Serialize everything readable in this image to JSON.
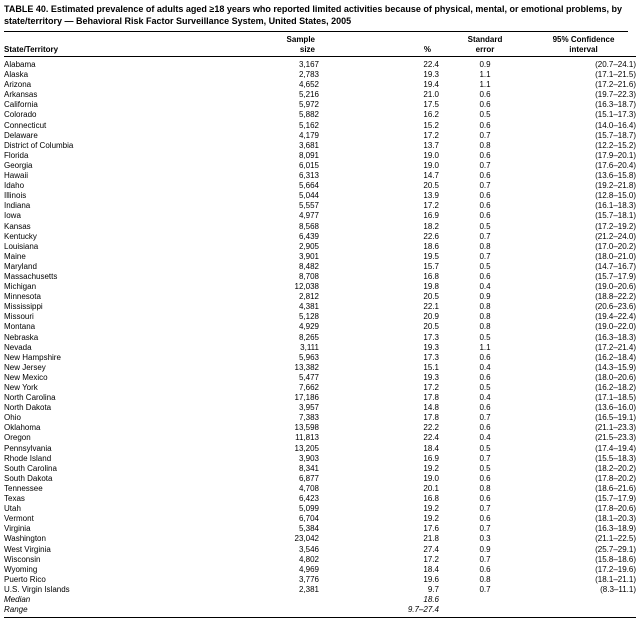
{
  "title": "TABLE 40. Estimated prevalence of adults aged ≥18 years who reported limited activities because of physical, mental, or emotional problems, by state/territory — Behavioral Risk Factor Surveillance System, United States, 2005",
  "table": {
    "headers": {
      "state": "State/Territory",
      "sample": "Sample\nsize",
      "pct": "%",
      "se": "Standard\nerror",
      "ci": "95% Confidence\ninterval"
    },
    "rows": [
      {
        "state": "Alabama",
        "sample": "3,167",
        "pct": "22.4",
        "se": "0.9",
        "ci": "(20.7–24.1)"
      },
      {
        "state": "Alaska",
        "sample": "2,783",
        "pct": "19.3",
        "se": "1.1",
        "ci": "(17.1–21.5)"
      },
      {
        "state": "Arizona",
        "sample": "4,652",
        "pct": "19.4",
        "se": "1.1",
        "ci": "(17.2–21.6)"
      },
      {
        "state": "Arkansas",
        "sample": "5,216",
        "pct": "21.0",
        "se": "0.6",
        "ci": "(19.7–22.3)"
      },
      {
        "state": "California",
        "sample": "5,972",
        "pct": "17.5",
        "se": "0.6",
        "ci": "(16.3–18.7)"
      },
      {
        "state": "Colorado",
        "sample": "5,882",
        "pct": "16.2",
        "se": "0.5",
        "ci": "(15.1–17.3)"
      },
      {
        "state": "Connecticut",
        "sample": "5,162",
        "pct": "15.2",
        "se": "0.6",
        "ci": "(14.0–16.4)"
      },
      {
        "state": "Delaware",
        "sample": "4,179",
        "pct": "17.2",
        "se": "0.7",
        "ci": "(15.7–18.7)"
      },
      {
        "state": "District of Columbia",
        "sample": "3,681",
        "pct": "13.7",
        "se": "0.8",
        "ci": "(12.2–15.2)"
      },
      {
        "state": "Florida",
        "sample": "8,091",
        "pct": "19.0",
        "se": "0.6",
        "ci": "(17.9–20.1)"
      },
      {
        "state": "Georgia",
        "sample": "6,015",
        "pct": "19.0",
        "se": "0.7",
        "ci": "(17.6–20.4)"
      },
      {
        "state": "Hawaii",
        "sample": "6,313",
        "pct": "14.7",
        "se": "0.6",
        "ci": "(13.6–15.8)"
      },
      {
        "state": "Idaho",
        "sample": "5,664",
        "pct": "20.5",
        "se": "0.7",
        "ci": "(19.2–21.8)"
      },
      {
        "state": "Illinois",
        "sample": "5,044",
        "pct": "13.9",
        "se": "0.6",
        "ci": "(12.8–15.0)"
      },
      {
        "state": "Indiana",
        "sample": "5,557",
        "pct": "17.2",
        "se": "0.6",
        "ci": "(16.1–18.3)"
      },
      {
        "state": "Iowa",
        "sample": "4,977",
        "pct": "16.9",
        "se": "0.6",
        "ci": "(15.7–18.1)"
      },
      {
        "state": "Kansas",
        "sample": "8,568",
        "pct": "18.2",
        "se": "0.5",
        "ci": "(17.2–19.2)"
      },
      {
        "state": "Kentucky",
        "sample": "6,439",
        "pct": "22.6",
        "se": "0.7",
        "ci": "(21.2–24.0)"
      },
      {
        "state": "Louisiana",
        "sample": "2,905",
        "pct": "18.6",
        "se": "0.8",
        "ci": "(17.0–20.2)"
      },
      {
        "state": "Maine",
        "sample": "3,901",
        "pct": "19.5",
        "se": "0.7",
        "ci": "(18.0–21.0)"
      },
      {
        "state": "Maryland",
        "sample": "8,482",
        "pct": "15.7",
        "se": "0.5",
        "ci": "(14.7–16.7)"
      },
      {
        "state": "Massachusetts",
        "sample": "8,708",
        "pct": "16.8",
        "se": "0.6",
        "ci": "(15.7–17.9)"
      },
      {
        "state": "Michigan",
        "sample": "12,038",
        "pct": "19.8",
        "se": "0.4",
        "ci": "(19.0–20.6)"
      },
      {
        "state": "Minnesota",
        "sample": "2,812",
        "pct": "20.5",
        "se": "0.9",
        "ci": "(18.8–22.2)"
      },
      {
        "state": "Mississippi",
        "sample": "4,381",
        "pct": "22.1",
        "se": "0.8",
        "ci": "(20.6–23.6)"
      },
      {
        "state": "Missouri",
        "sample": "5,128",
        "pct": "20.9",
        "se": "0.8",
        "ci": "(19.4–22.4)"
      },
      {
        "state": "Montana",
        "sample": "4,929",
        "pct": "20.5",
        "se": "0.8",
        "ci": "(19.0–22.0)"
      },
      {
        "state": "Nebraska",
        "sample": "8,265",
        "pct": "17.3",
        "se": "0.5",
        "ci": "(16.3–18.3)"
      },
      {
        "state": "Nevada",
        "sample": "3,111",
        "pct": "19.3",
        "se": "1.1",
        "ci": "(17.2–21.4)"
      },
      {
        "state": "New Hampshire",
        "sample": "5,963",
        "pct": "17.3",
        "se": "0.6",
        "ci": "(16.2–18.4)"
      },
      {
        "state": "New Jersey",
        "sample": "13,382",
        "pct": "15.1",
        "se": "0.4",
        "ci": "(14.3–15.9)"
      },
      {
        "state": "New Mexico",
        "sample": "5,477",
        "pct": "19.3",
        "se": "0.6",
        "ci": "(18.0–20.6)"
      },
      {
        "state": "New York",
        "sample": "7,662",
        "pct": "17.2",
        "se": "0.5",
        "ci": "(16.2–18.2)"
      },
      {
        "state": "North Carolina",
        "sample": "17,186",
        "pct": "17.8",
        "se": "0.4",
        "ci": "(17.1–18.5)"
      },
      {
        "state": "North Dakota",
        "sample": "3,957",
        "pct": "14.8",
        "se": "0.6",
        "ci": "(13.6–16.0)"
      },
      {
        "state": "Ohio",
        "sample": "7,383",
        "pct": "17.8",
        "se": "0.7",
        "ci": "(16.5–19.1)"
      },
      {
        "state": "Oklahoma",
        "sample": "13,598",
        "pct": "22.2",
        "se": "0.6",
        "ci": "(21.1–23.3)"
      },
      {
        "state": "Oregon",
        "sample": "11,813",
        "pct": "22.4",
        "se": "0.4",
        "ci": "(21.5–23.3)"
      },
      {
        "state": "Pennsylvania",
        "sample": "13,205",
        "pct": "18.4",
        "se": "0.5",
        "ci": "(17.4–19.4)"
      },
      {
        "state": "Rhode Island",
        "sample": "3,903",
        "pct": "16.9",
        "se": "0.7",
        "ci": "(15.5–18.3)"
      },
      {
        "state": "South Carolina",
        "sample": "8,341",
        "pct": "19.2",
        "se": "0.5",
        "ci": "(18.2–20.2)"
      },
      {
        "state": "South Dakota",
        "sample": "6,877",
        "pct": "19.0",
        "se": "0.6",
        "ci": "(17.8–20.2)"
      },
      {
        "state": "Tennessee",
        "sample": "4,708",
        "pct": "20.1",
        "se": "0.8",
        "ci": "(18.6–21.6)"
      },
      {
        "state": "Texas",
        "sample": "6,423",
        "pct": "16.8",
        "se": "0.6",
        "ci": "(15.7–17.9)"
      },
      {
        "state": "Utah",
        "sample": "5,099",
        "pct": "19.2",
        "se": "0.7",
        "ci": "(17.8–20.6)"
      },
      {
        "state": "Vermont",
        "sample": "6,704",
        "pct": "19.2",
        "se": "0.6",
        "ci": "(18.1–20.3)"
      },
      {
        "state": "Virginia",
        "sample": "5,384",
        "pct": "17.6",
        "se": "0.7",
        "ci": "(16.3–18.9)"
      },
      {
        "state": "Washington",
        "sample": "23,042",
        "pct": "21.8",
        "se": "0.3",
        "ci": "(21.1–22.5)"
      },
      {
        "state": "West Virginia",
        "sample": "3,546",
        "pct": "27.4",
        "se": "0.9",
        "ci": "(25.7–29.1)"
      },
      {
        "state": "Wisconsin",
        "sample": "4,802",
        "pct": "17.2",
        "se": "0.7",
        "ci": "(15.8–18.6)"
      },
      {
        "state": "Wyoming",
        "sample": "4,969",
        "pct": "18.4",
        "se": "0.6",
        "ci": "(17.2–19.6)"
      },
      {
        "state": "Puerto Rico",
        "sample": "3,776",
        "pct": "19.6",
        "se": "0.8",
        "ci": "(18.1–21.1)"
      },
      {
        "state": "U.S. Virgin Islands",
        "sample": "2,381",
        "pct": "9.7",
        "se": "0.7",
        "ci": "(8.3–11.1)"
      },
      {
        "state": "Median",
        "pct": "18.6",
        "italic": true
      },
      {
        "state": "Range",
        "pct": "9.7–27.4",
        "italic": true
      }
    ]
  }
}
